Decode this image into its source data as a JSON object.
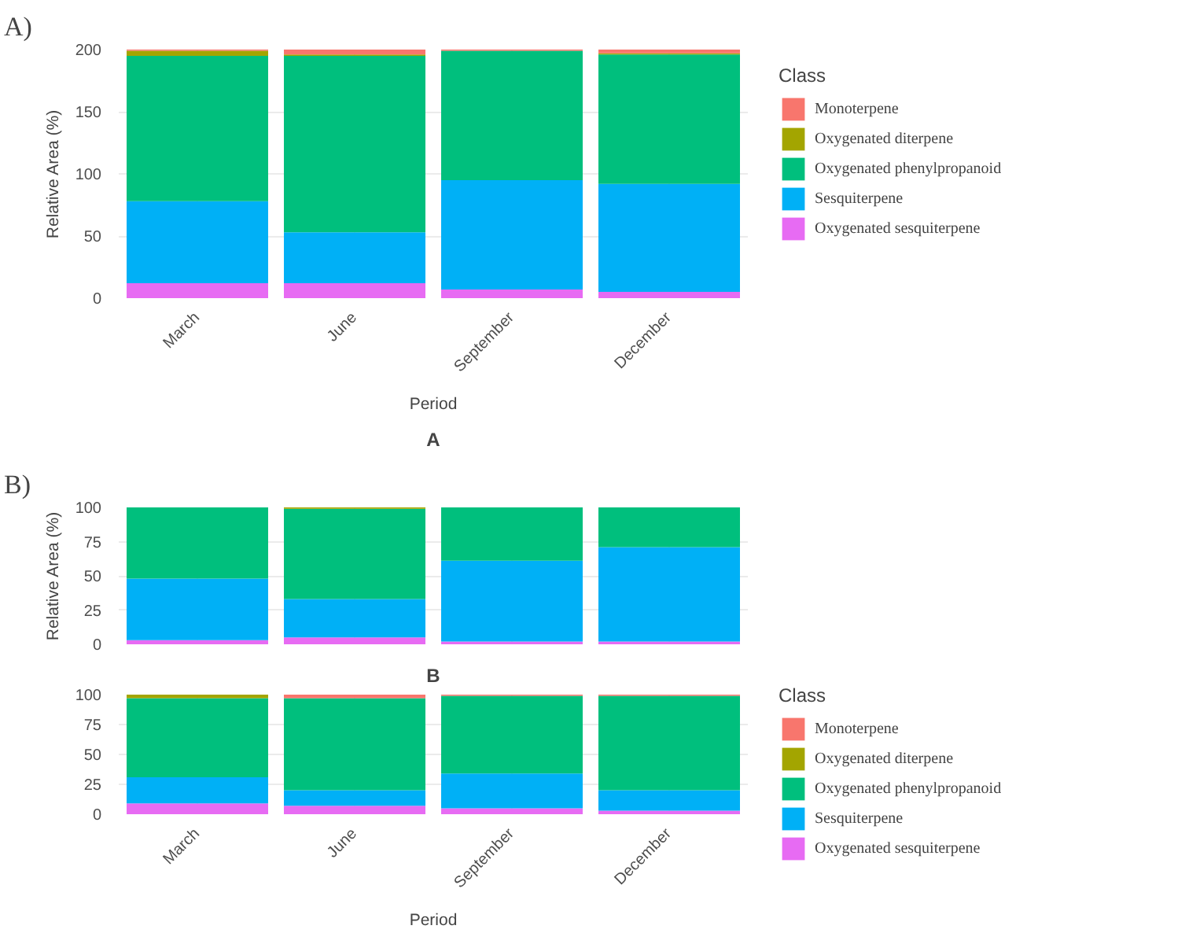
{
  "chart_data": [
    {
      "type": "bar",
      "stacked": true,
      "annotations": [
        "A)"
      ],
      "xlabel": "Period",
      "ylabel": "Relative Area (%)",
      "legend_title": "Class",
      "legend": "right",
      "grid": true,
      "categories": [
        "March",
        "June",
        "September",
        "December"
      ],
      "ylim": [
        0,
        200
      ],
      "yticks": [
        0,
        50,
        100,
        150,
        200
      ],
      "series": [
        {
          "name": "Oxygenated sesquiterpene",
          "color": "#e76bf3",
          "values": [
            12,
            12,
            7,
            5
          ]
        },
        {
          "name": "Sesquiterpene",
          "color": "#00b0f6",
          "values": [
            66,
            41,
            88,
            87
          ]
        },
        {
          "name": "Oxygenated phenylpropanoid",
          "color": "#00bf7d",
          "values": [
            117,
            142,
            104,
            104
          ]
        },
        {
          "name": "Oxygenated diterpene",
          "color": "#a3a500",
          "values": [
            4,
            1,
            0,
            1
          ]
        },
        {
          "name": "Monoterpene",
          "color": "#f8766d",
          "values": [
            1,
            4,
            1,
            3
          ]
        }
      ]
    },
    {
      "type": "bar",
      "stacked": true,
      "title": "A",
      "annotations": [
        "B)"
      ],
      "ylabel": "Relative Area (%)",
      "grid": true,
      "tick_labels": "y",
      "categories": [
        null,
        null,
        null,
        null
      ],
      "ylim": [
        0,
        100
      ],
      "yticks": [
        0,
        25,
        50,
        75,
        100
      ],
      "series": [
        {
          "color": "#e76bf3",
          "values": [
            3,
            5,
            2,
            2
          ]
        },
        {
          "color": "#00b0f6",
          "values": [
            45,
            28,
            59,
            69
          ]
        },
        {
          "color": "#00bf7d",
          "values": [
            52,
            66,
            39,
            29
          ]
        },
        {
          "color": "#a3a500",
          "values": [
            0,
            1,
            0,
            0
          ]
        },
        {
          "color": "#f8766d",
          "values": [
            0,
            0,
            0,
            0
          ]
        }
      ]
    },
    {
      "type": "bar",
      "stacked": true,
      "title": "B",
      "xlabel": "Period",
      "legend_title": "Class",
      "legend": "right",
      "grid": true,
      "categories": [
        "March",
        "June",
        "September",
        "December"
      ],
      "ylim": [
        0,
        100
      ],
      "yticks": [
        0,
        25,
        50,
        75,
        100
      ],
      "series": [
        {
          "name": "Oxygenated sesquiterpene",
          "color": "#e76bf3",
          "values": [
            9,
            7,
            5,
            3
          ]
        },
        {
          "name": "Sesquiterpene",
          "color": "#00b0f6",
          "values": [
            22,
            13,
            29,
            17
          ]
        },
        {
          "name": "Oxygenated phenylpropanoid",
          "color": "#00bf7d",
          "values": [
            66,
            77,
            65,
            79
          ]
        },
        {
          "name": "Oxygenated diterpene",
          "color": "#a3a500",
          "values": [
            3,
            0,
            0,
            0
          ]
        },
        {
          "name": "Monoterpene",
          "color": "#f8766d",
          "values": [
            0,
            3,
            1,
            1
          ]
        }
      ]
    }
  ]
}
